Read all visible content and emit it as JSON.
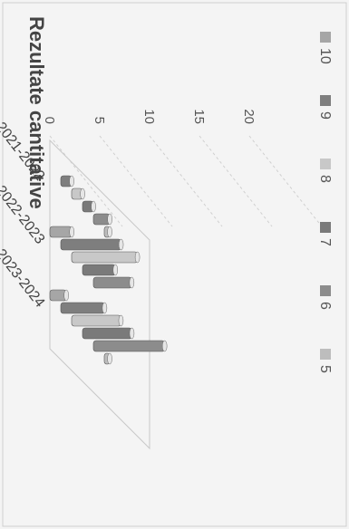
{
  "chart_data": {
    "type": "bar",
    "title": "Rezultate cantitative",
    "categories": [
      "2021-2022",
      "2022-2023",
      "2023-2024"
    ],
    "y_ticks": [
      0,
      5,
      10,
      15,
      20
    ],
    "ylim": [
      0,
      20
    ],
    "legend_position": "right",
    "rotation": "chart printed rotated 90 degrees clockwise",
    "series": [
      {
        "name": "5",
        "color": "#bdbdbd",
        "values": [
          1,
          0,
          1
        ]
      },
      {
        "name": "6",
        "color": "#8c8c8c",
        "values": [
          3,
          7,
          13
        ]
      },
      {
        "name": "7",
        "color": "#7a7a7a",
        "values": [
          2,
          6,
          9
        ]
      },
      {
        "name": "8",
        "color": "#c8c8c8",
        "values": [
          2,
          12,
          9
        ]
      },
      {
        "name": "9",
        "color": "#7e7e7e",
        "values": [
          2,
          11,
          8
        ]
      },
      {
        "name": "10",
        "color": "#a6a6a6",
        "values": [
          0,
          4,
          3
        ]
      }
    ]
  }
}
